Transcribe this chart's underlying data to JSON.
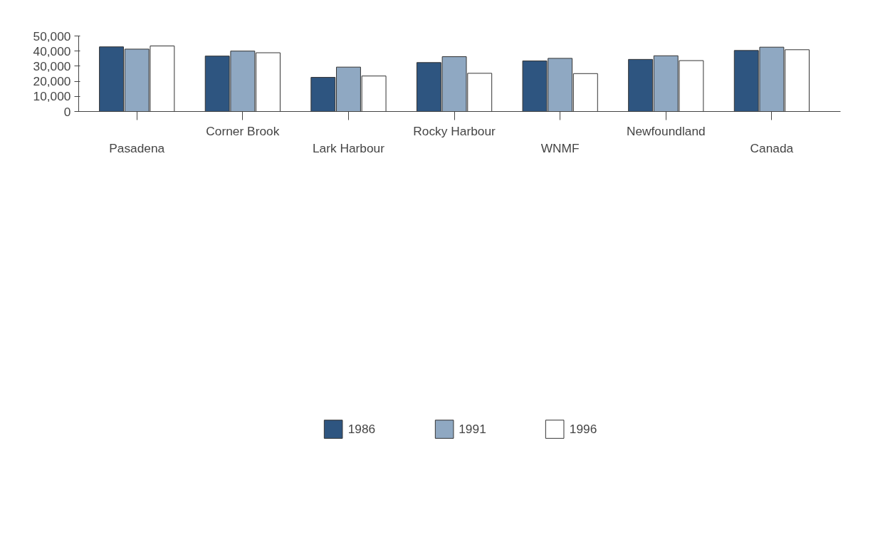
{
  "chart_data": {
    "type": "bar",
    "categories": [
      "Pasadena",
      "Corner Brook",
      "Lark Harbour",
      "Rocky Harbour",
      "WNMF",
      "Newfoundland",
      "Canada"
    ],
    "series": [
      {
        "name": "1986",
        "color": "#2e5580",
        "values": [
          42800,
          36700,
          22600,
          32400,
          33500,
          34500,
          40400
        ]
      },
      {
        "name": "1991",
        "color": "#8fa8c2",
        "values": [
          41300,
          40000,
          29400,
          36300,
          35200,
          36900,
          42600
        ]
      },
      {
        "name": "1996",
        "color": "#ffffff",
        "values": [
          43400,
          38900,
          23500,
          25300,
          25100,
          33700,
          40900
        ]
      }
    ],
    "ylim": [
      0,
      50000
    ],
    "yticks": [
      {
        "value": 0,
        "label": "0"
      },
      {
        "value": 10000,
        "label": "10,000"
      },
      {
        "value": 20000,
        "label": "20,000"
      },
      {
        "value": 30000,
        "label": "30,000"
      },
      {
        "value": 40000,
        "label": "40,000"
      },
      {
        "value": 50000,
        "label": "50,000"
      }
    ],
    "grid": false,
    "legend": "bottom"
  }
}
